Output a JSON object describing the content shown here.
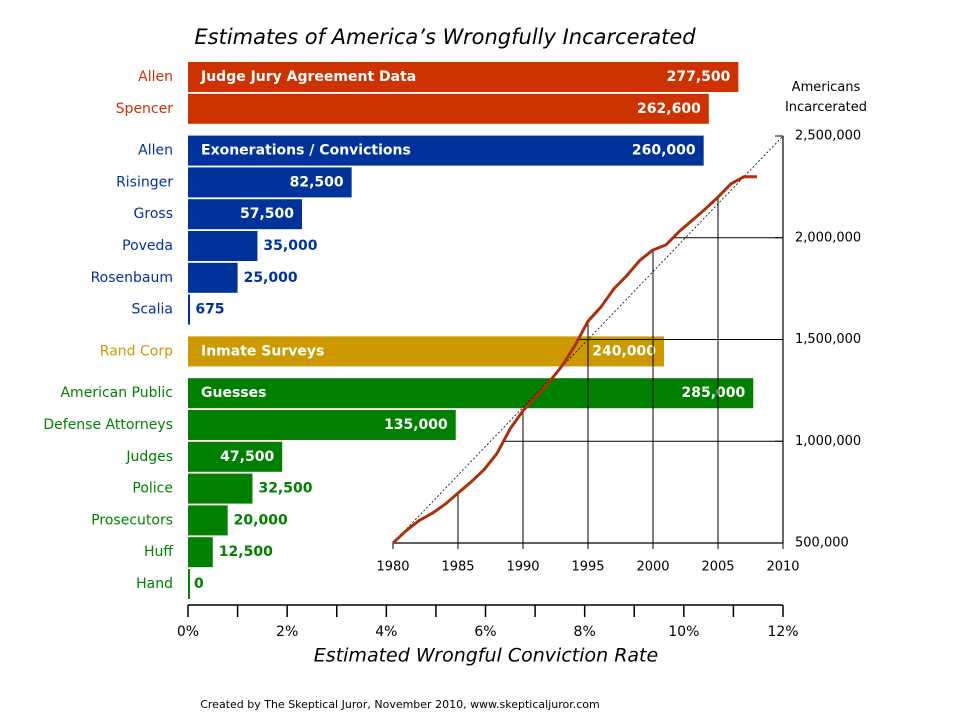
{
  "chart_data": [
    {
      "type": "bar",
      "orientation": "horizontal",
      "title": "Estimates of America’s Wrongfully Incarcerated",
      "x_label": "Estimated Wrongful Conviction Rate",
      "xlim": [
        0,
        300000
      ],
      "xticks": [
        {
          "value": 0,
          "label": "0%"
        },
        {
          "value": 50000,
          "label": "2%"
        },
        {
          "value": 100000,
          "label": "4%"
        },
        {
          "value": 150000,
          "label": "6%"
        },
        {
          "value": 200000,
          "label": "8%"
        },
        {
          "value": 250000,
          "label": "10%"
        },
        {
          "value": 300000,
          "label": "12%"
        }
      ],
      "xminorticks": [
        25000,
        75000,
        125000,
        175000,
        225000,
        275000
      ],
      "groups": [
        {
          "name": "Judge Jury Agreement Data",
          "color": "#cc3300",
          "categories": [
            "Allen",
            "Spencer"
          ],
          "values": [
            277500,
            262600
          ],
          "value_labels": [
            "277,500",
            "262,600"
          ]
        },
        {
          "name": "Exonerations / Convictions",
          "color": "#003399",
          "categories": [
            "Allen",
            "Risinger",
            "Gross",
            "Poveda",
            "Rosenbaum",
            "Scalia"
          ],
          "values": [
            260000,
            82500,
            57500,
            35000,
            25000,
            675
          ],
          "value_labels": [
            "260,000",
            "82,500",
            "57,500",
            "35,000",
            "25,000",
            "675"
          ]
        },
        {
          "name": "Inmate Surveys",
          "color": "#cc9900",
          "categories": [
            "Rand Corp"
          ],
          "values": [
            240000
          ],
          "value_labels": [
            "240,000"
          ]
        },
        {
          "name": "Guesses",
          "color": "#008000",
          "categories": [
            "American Public",
            "Defense Attorneys",
            "Judges",
            "Police",
            "Prosecutors",
            "Huff",
            "Hand"
          ],
          "values": [
            285000,
            135000,
            47500,
            32500,
            20000,
            12500,
            0
          ],
          "value_labels": [
            "285,000",
            "135,000",
            "47,500",
            "32,500",
            "20,000",
            "12,500",
            "0"
          ]
        }
      ]
    },
    {
      "type": "line",
      "y_label": "Americans Incarcerated",
      "diagonal": true,
      "x": [
        1980,
        1981,
        1982,
        1983,
        1984,
        1985,
        1986,
        1987,
        1988,
        1989,
        1990,
        1991,
        1992,
        1993,
        1994,
        1995,
        1996,
        1997,
        1998,
        1999,
        2000,
        2001,
        2002,
        2003,
        2004,
        2005,
        2006,
        2007,
        2008
      ],
      "series": [
        {
          "color": "#a83210",
          "values": [
            500000,
            560000,
            610000,
            645000,
            690000,
            745000,
            800000,
            860000,
            940000,
            1060000,
            1150000,
            1220000,
            1290000,
            1370000,
            1470000,
            1590000,
            1660000,
            1750000,
            1815000,
            1890000,
            1940000,
            1965000,
            2030000,
            2085000,
            2140000,
            2200000,
            2265000,
            2300000,
            2300000
          ]
        }
      ],
      "xlim": [
        1980,
        2010
      ],
      "xticks": [
        1980,
        1985,
        1990,
        1995,
        2000,
        2005,
        2010
      ],
      "ylim": [
        500000,
        2500000
      ],
      "yticks": [
        {
          "value": 500000,
          "label": "500,000"
        },
        {
          "value": 1000000,
          "label": "1,000,000"
        },
        {
          "value": 1500000,
          "label": "1,500,000"
        },
        {
          "value": 2000000,
          "label": "2,000,000"
        },
        {
          "value": 2500000,
          "label": "2,500,000"
        }
      ],
      "grid": true
    }
  ],
  "footer": "Created by The Skeptical Juror, November 2010, www.skepticaljuror.com"
}
